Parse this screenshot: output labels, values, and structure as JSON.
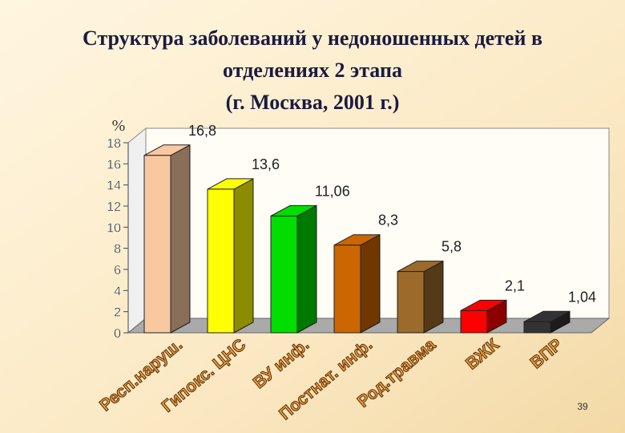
{
  "chart_data": {
    "type": "bar3d",
    "title": [
      "Структура заболеваний у недоношенных детей в",
      "отделениях 2 этапа",
      "(г. Москва, 2001 г.)"
    ],
    "y_label": "%",
    "categories": [
      "Респ.наруш.",
      "Гипокс. ЦНС",
      "ВУ инф.",
      "Постнат. инф.",
      "Род.травма",
      "ВЖК",
      "ВПР"
    ],
    "values": [
      16.8,
      13.6,
      11.06,
      8.3,
      5.8,
      2.1,
      1.04
    ],
    "value_labels": [
      "16,8",
      "13,6",
      "11,06",
      "8,3",
      "5,8",
      "2,1",
      "1,04"
    ],
    "colors": [
      "#f9c8a0",
      "#ffff00",
      "#00dd00",
      "#cc6600",
      "#9c6a2a",
      "#ff0000",
      "#333333"
    ],
    "ylim": [
      0,
      18
    ],
    "yticks": [
      0,
      2,
      4,
      6,
      8,
      10,
      12,
      14,
      16,
      18
    ],
    "page_number": "39"
  }
}
